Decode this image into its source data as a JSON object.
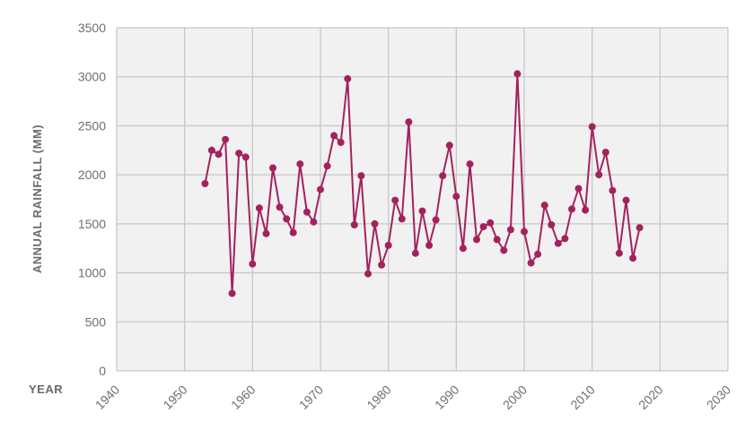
{
  "colors": {
    "series": "#a3225e",
    "plot_background": "#f1f1f1",
    "grid": "#c8c8c8",
    "text": "#6f6f6f"
  },
  "chart_data": {
    "type": "line",
    "title": "",
    "xlabel": "YEAR",
    "ylabel": "ANNUAL RAINFALL (MM)",
    "xlim": [
      1940,
      2030
    ],
    "ylim": [
      0,
      3500
    ],
    "xticks": [
      "1940",
      "1950",
      "1960",
      "1970",
      "1980",
      "1990",
      "2000",
      "2010",
      "2020",
      "2030"
    ],
    "yticks": [
      "0",
      "500",
      "1000",
      "1500",
      "2000",
      "2500",
      "3000",
      "3500"
    ],
    "grid": true,
    "legend": "none",
    "markers": true,
    "series": [
      {
        "x": [
          1953,
          1954,
          1955,
          1956,
          1957,
          1958,
          1959,
          1960,
          1961,
          1962,
          1963,
          1964,
          1965,
          1966,
          1967,
          1968,
          1969,
          1970,
          1971,
          1972,
          1973,
          1974,
          1975,
          1976,
          1977,
          1978,
          1979,
          1980,
          1981,
          1982,
          1983,
          1984,
          1985,
          1986,
          1987,
          1988,
          1989,
          1990,
          1991,
          1992,
          1993,
          1994,
          1995,
          1996,
          1997,
          1998,
          1999,
          2000,
          2001,
          2002,
          2003,
          2004,
          2005,
          2006,
          2007,
          2008,
          2009,
          2010,
          2011,
          2012,
          2013,
          2014,
          2015,
          2016,
          2017
        ],
        "y": [
          1910,
          2250,
          2210,
          2360,
          790,
          2220,
          2180,
          1090,
          1660,
          1400,
          2070,
          1670,
          1550,
          1410,
          2110,
          1620,
          1520,
          1850,
          2090,
          2400,
          2330,
          2980,
          1490,
          1990,
          990,
          1500,
          1080,
          1280,
          1740,
          1550,
          2540,
          1200,
          1630,
          1280,
          1540,
          1990,
          2300,
          1780,
          1250,
          2110,
          1340,
          1470,
          1510,
          1340,
          1230,
          1440,
          3030,
          1420,
          1100,
          1190,
          1690,
          1490,
          1300,
          1350,
          1650,
          1860,
          1640,
          2490,
          2000,
          2230,
          1840,
          1200,
          1740,
          1150,
          1460
        ]
      }
    ]
  }
}
